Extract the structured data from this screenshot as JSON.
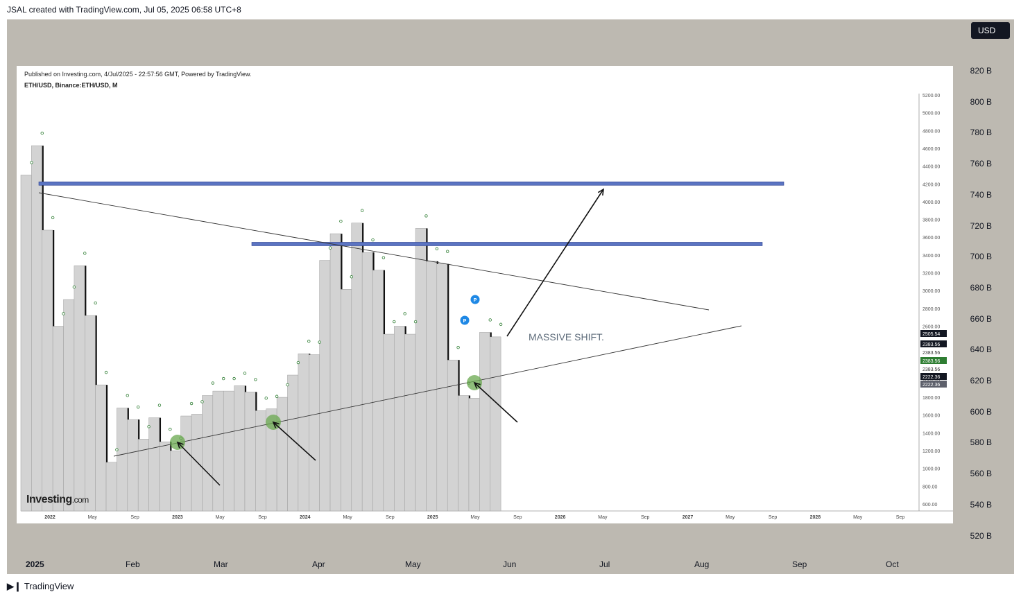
{
  "header": {
    "text": "JSAL created with TradingView.com, Jul 05, 2025 06:58 UTC+8"
  },
  "currency_button": {
    "label": "USD"
  },
  "price_axis": [
    "820 B",
    "800 B",
    "780 B",
    "760 B",
    "740 B",
    "720 B",
    "700 B",
    "680 B",
    "660 B",
    "640 B",
    "620 B",
    "600 B",
    "580 B",
    "560 B",
    "540 B",
    "520 B"
  ],
  "time_axis": [
    "2025",
    "Feb",
    "Mar",
    "Apr",
    "May",
    "Jun",
    "Jul",
    "Aug",
    "Sep",
    "Oct"
  ],
  "footer": {
    "brand": "TradingView"
  },
  "inner_chart": {
    "published": "Published on Investing.com, 4/Jul/2025 - 22:57:56 GMT, Powered by TradingView.",
    "symbol": "ETH/USD, Binance:ETH/USD, M",
    "logo_main": "Investing",
    "logo_suffix": ".com",
    "annotation": "MASSIVE SHIFT.",
    "marker_label": "P",
    "price_ticks": [
      "5200.00",
      "5000.00",
      "4800.00",
      "4600.00",
      "4400.00",
      "4200.00",
      "4000.00",
      "3800.00",
      "3600.00",
      "3400.00",
      "3200.00",
      "3000.00",
      "2800.00",
      "2600.00",
      "2400.00",
      "2200.00",
      "2000.00",
      "1800.00",
      "1600.00",
      "1400.00",
      "1200.00",
      "1000.00",
      "800.00",
      "600.00"
    ],
    "price_tags": [
      {
        "text": "2505.54",
        "bg": "#131722"
      },
      {
        "text": "2383.56",
        "bg": "#131722"
      },
      {
        "text": "2383.56",
        "bg": "#ffffff"
      },
      {
        "text": "2383.56",
        "bg": "#2e7d32"
      },
      {
        "text": "2383.56",
        "bg": "#ffffff"
      },
      {
        "text": "2222.36",
        "bg": "#131722"
      },
      {
        "text": "2222.36",
        "bg": "#5d606b"
      }
    ],
    "time_ticks": [
      "2022",
      "May",
      "Sep",
      "2023",
      "May",
      "Sep",
      "2024",
      "May",
      "Sep",
      "2025",
      "May",
      "Sep",
      "2026",
      "May",
      "Sep",
      "2027",
      "May",
      "Sep",
      "2028",
      "May",
      "Sep"
    ]
  },
  "chart_data": {
    "type": "bar",
    "title": "ETH/USD, Binance:ETH/USD, M",
    "colors": {
      "bar": "#d3d3d3",
      "bar_edge": "#9e9e9e",
      "wick": "#111111",
      "band": "#5b74c2",
      "touch": "#6aa84f",
      "marker": "#1e88e5"
    },
    "x": [
      "2021-10",
      "2021-11",
      "2021-12",
      "2022-01",
      "2022-02",
      "2022-03",
      "2022-04",
      "2022-05",
      "2022-06",
      "2022-07",
      "2022-08",
      "2022-09",
      "2022-10",
      "2022-11",
      "2022-12",
      "2023-01",
      "2023-02",
      "2023-03",
      "2023-04",
      "2023-05",
      "2023-06",
      "2023-07",
      "2023-08",
      "2023-09",
      "2023-10",
      "2023-11",
      "2023-12",
      "2024-01",
      "2024-02",
      "2024-03",
      "2024-04",
      "2024-05",
      "2024-06",
      "2024-07",
      "2024-08",
      "2024-09",
      "2024-10",
      "2024-11",
      "2024-12",
      "2025-01",
      "2025-02",
      "2025-03",
      "2025-04",
      "2025-05",
      "2025-06"
    ],
    "close": [
      4300,
      4630,
      3680,
      2600,
      2900,
      3280,
      2720,
      1940,
      1070,
      1680,
      1550,
      1330,
      1570,
      1300,
      1200,
      1590,
      1610,
      1820,
      1870,
      1870,
      1930,
      1860,
      1650,
      1670,
      1800,
      2050,
      2290,
      2280,
      3340,
      3640,
      3015,
      3760,
      3430,
      3230,
      2510,
      2600,
      2510,
      3700,
      3330,
      3300,
      2220,
      1820,
      1790,
      2530,
      2480
    ],
    "ylim": [
      600,
      5200
    ],
    "levels": [
      {
        "name": "resistance_high",
        "value": 4200
      },
      {
        "name": "resistance_mid",
        "value": 3520
      }
    ]
  }
}
